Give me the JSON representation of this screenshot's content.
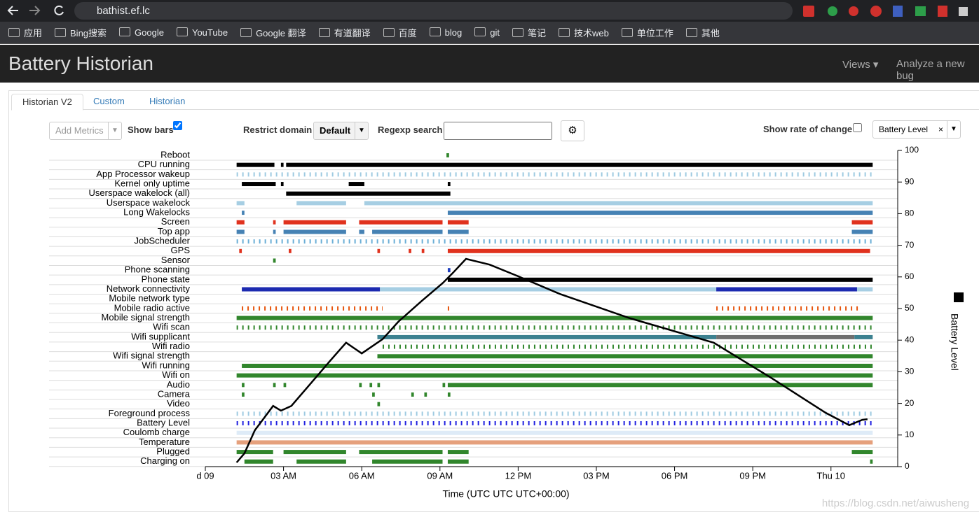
{
  "browser": {
    "url": "bathist.ef.lc",
    "bookmarks": [
      "应用",
      "Bing搜索",
      "Google",
      "YouTube",
      "Google 翻译",
      "有道翻译",
      "百度",
      "blog",
      "git",
      "笔记",
      "技术web",
      "单位工作",
      "其他"
    ]
  },
  "header": {
    "title": "Battery Historian",
    "menu": [
      "Views",
      "Analyze a new bug"
    ]
  },
  "tabs": [
    "Historian V2",
    "Custom",
    "Historian"
  ],
  "active_tab": 0,
  "controls": {
    "add_metrics": "Add Metrics",
    "show_bars": "Show bars",
    "show_bars_checked": true,
    "restrict_domain": "Restrict domain",
    "domain": "Default",
    "regexp_search": "Regexp search",
    "show_rate_of_change": "Show rate of change",
    "rate_checked": false,
    "metric": "Battery Level"
  },
  "chart_data": {
    "type": "timeline",
    "rows": [
      {
        "name": "Reboot",
        "color": "#31862c",
        "segments": [
          [
            9.25,
            9.35
          ]
        ]
      },
      {
        "name": "CPU running",
        "color": "#000000",
        "segments": [
          [
            1.2,
            2.65
          ],
          [
            2.9,
            3.0
          ],
          [
            3.1,
            25.6
          ]
        ]
      },
      {
        "name": "App Processor wakeup",
        "color": "#9ecae1",
        "style": "ticks",
        "segments": [
          [
            1.2,
            25.6
          ]
        ]
      },
      {
        "name": "Kernel only uptime",
        "color": "#000000",
        "segments": [
          [
            1.4,
            2.7
          ],
          [
            2.9,
            3.0
          ],
          [
            5.5,
            6.1
          ],
          [
            9.3,
            9.4
          ]
        ]
      },
      {
        "name": "Userspace wakelock (all)",
        "color": "#000000",
        "segments": [
          [
            3.1,
            9.4
          ]
        ]
      },
      {
        "name": "Userspace wakelock",
        "color": "#a6cee3",
        "segments": [
          [
            1.2,
            1.5
          ],
          [
            3.5,
            5.4
          ],
          [
            6.1,
            25.6
          ]
        ]
      },
      {
        "name": "Long Wakelocks",
        "color": "#4682b4",
        "segments": [
          [
            1.4,
            1.5
          ],
          [
            9.3,
            25.6
          ]
        ]
      },
      {
        "name": "Screen",
        "color": "#e0321e",
        "segments": [
          [
            1.2,
            1.5
          ],
          [
            2.6,
            2.7
          ],
          [
            3.0,
            5.4
          ],
          [
            5.9,
            9.1
          ],
          [
            9.3,
            10.1
          ],
          [
            24.8,
            25.6
          ]
        ]
      },
      {
        "name": "Top app",
        "color": "#4682b4",
        "segments": [
          [
            1.2,
            1.5
          ],
          [
            2.6,
            2.7
          ],
          [
            3.0,
            5.4
          ],
          [
            5.9,
            6.1
          ],
          [
            6.4,
            9.1
          ],
          [
            9.3,
            10.1
          ],
          [
            24.8,
            25.6
          ]
        ]
      },
      {
        "name": "JobScheduler",
        "color": "#6baed6",
        "style": "ticks",
        "segments": [
          [
            1.2,
            25.6
          ]
        ]
      },
      {
        "name": "GPS",
        "color": "#e0321e",
        "segments": [
          [
            1.3,
            1.4
          ],
          [
            3.2,
            3.3
          ],
          [
            6.6,
            6.7
          ],
          [
            7.8,
            7.9
          ],
          [
            8.3,
            8.4
          ],
          [
            9.3,
            25.5
          ]
        ]
      },
      {
        "name": "Sensor",
        "color": "#31862c",
        "segments": [
          [
            2.6,
            2.7
          ]
        ]
      },
      {
        "name": "Phone scanning",
        "color": "#1f3fbf",
        "segments": [
          [
            9.3,
            9.4
          ]
        ]
      },
      {
        "name": "Phone state",
        "color": "#000000",
        "segments": [
          [
            9.3,
            25.6
          ]
        ]
      },
      {
        "name": "Network connectivity",
        "color": "#1c2ab0",
        "colors": [
          "#1c2ab0",
          "#a6cee3",
          "#1c2ab0",
          "#a6cee3"
        ],
        "segments": [
          [
            1.4,
            6.7
          ],
          [
            6.7,
            19.6
          ],
          [
            19.6,
            25.0
          ],
          [
            25.0,
            25.6
          ]
        ]
      },
      {
        "name": "Mobile network type",
        "color": "#000000",
        "segments": []
      },
      {
        "name": "Mobile radio active",
        "color": "#e6550d",
        "style": "ticks",
        "segments": [
          [
            1.4,
            6.8
          ],
          [
            9.3,
            9.4
          ],
          [
            19.6,
            25.1
          ]
        ]
      },
      {
        "name": "Mobile signal strength",
        "color": "#31862c",
        "segments": [
          [
            1.2,
            25.6
          ]
        ]
      },
      {
        "name": "Wifi scan",
        "color": "#31862c",
        "style": "ticks",
        "segments": [
          [
            1.2,
            25.6
          ]
        ]
      },
      {
        "name": "Wifi supplicant",
        "color": "#3c8190",
        "colors": [
          "#3c8190",
          "#6f6f6f",
          "#3c8190"
        ],
        "segments": [
          [
            6.6,
            19.6
          ],
          [
            19.6,
            24.9
          ],
          [
            24.9,
            25.6
          ]
        ]
      },
      {
        "name": "Wifi radio",
        "color": "#31862c",
        "style": "ticks",
        "segments": [
          [
            6.8,
            25.6
          ]
        ]
      },
      {
        "name": "Wifi signal strength",
        "color": "#31862c",
        "segments": [
          [
            6.6,
            25.6
          ]
        ]
      },
      {
        "name": "Wifi running",
        "color": "#31862c",
        "segments": [
          [
            1.4,
            25.6
          ]
        ]
      },
      {
        "name": "Wifi on",
        "color": "#31862c",
        "segments": [
          [
            1.2,
            25.6
          ]
        ]
      },
      {
        "name": "Audio",
        "color": "#31862c",
        "segments": [
          [
            1.4,
            1.5
          ],
          [
            2.6,
            2.7
          ],
          [
            3.0,
            3.1
          ],
          [
            5.9,
            6.0
          ],
          [
            6.3,
            6.4
          ],
          [
            6.6,
            6.7
          ],
          [
            9.1,
            9.2
          ],
          [
            9.3,
            25.6
          ]
        ]
      },
      {
        "name": "Camera",
        "color": "#31862c",
        "segments": [
          [
            1.4,
            1.5
          ],
          [
            6.4,
            6.5
          ],
          [
            7.9,
            8.0
          ],
          [
            8.4,
            8.5
          ],
          [
            9.3,
            9.4
          ]
        ]
      },
      {
        "name": "Video",
        "color": "#31862c",
        "segments": [
          [
            6.6,
            6.7
          ]
        ]
      },
      {
        "name": "Foreground process",
        "color": "#9ecae1",
        "style": "ticks",
        "segments": [
          [
            1.2,
            25.6
          ]
        ]
      },
      {
        "name": "Battery Level",
        "color": "#2020e0",
        "style": "ticks",
        "segments": [
          [
            1.2,
            25.6
          ]
        ]
      },
      {
        "name": "Coulomb charge",
        "color": "#deebf7",
        "segments": [
          [
            1.2,
            25.6
          ]
        ]
      },
      {
        "name": "Temperature",
        "color": "#e5a07c",
        "segments": [
          [
            1.2,
            25.6
          ]
        ]
      },
      {
        "name": "Plugged",
        "color": "#31862c",
        "segments": [
          [
            1.2,
            2.6
          ],
          [
            3.0,
            5.4
          ],
          [
            5.9,
            9.1
          ],
          [
            9.3,
            10.1
          ],
          [
            24.8,
            25.6
          ]
        ]
      },
      {
        "name": "Charging on",
        "color": "#31862c",
        "segments": [
          [
            1.5,
            2.6
          ],
          [
            3.5,
            5.4
          ],
          [
            6.4,
            9.1
          ],
          [
            9.3,
            10.1
          ],
          [
            25.5,
            25.6
          ]
        ]
      }
    ],
    "xlim": [
      0,
      26.56
    ],
    "xticks": [
      {
        "value": 0,
        "label": "d 09"
      },
      {
        "value": 3,
        "label": "03 AM"
      },
      {
        "value": 6,
        "label": "06 AM"
      },
      {
        "value": 9,
        "label": "09 AM"
      },
      {
        "value": 12,
        "label": "12 PM"
      },
      {
        "value": 15,
        "label": "03 PM"
      },
      {
        "value": 18,
        "label": "06 PM"
      },
      {
        "value": 21,
        "label": "09 PM"
      },
      {
        "value": 24,
        "label": "Thu 10"
      }
    ],
    "xlabel": "Time (UTC UTC UTC+00:00)",
    "y2lim": [
      0,
      100
    ],
    "y2ticks": [
      0,
      10,
      20,
      30,
      40,
      50,
      60,
      70,
      80,
      90,
      100
    ],
    "series": [
      {
        "name": "Battery Level",
        "color": "#000000",
        "axis": "y2",
        "x": [
          1.2,
          1.5,
          1.9,
          2.6,
          2.9,
          3.3,
          4.0,
          4.8,
          5.4,
          6.0,
          6.8,
          7.4,
          8.3,
          9.1,
          9.5,
          10.0,
          10.9,
          12.0,
          13.6,
          16.3,
          19.5,
          21.7,
          23.8,
          24.7,
          25.2,
          25.4
        ],
        "values": [
          1.3,
          4.2,
          11.5,
          19.2,
          17.7,
          19.2,
          25.9,
          33.6,
          39.2,
          35.8,
          40.3,
          45.8,
          52.4,
          58,
          61.3,
          65.7,
          63.9,
          60.2,
          54.6,
          46.9,
          39.2,
          28.1,
          17,
          13.1,
          14.8,
          15
        ]
      }
    ]
  },
  "watermark": "https://blog.csdn.net/aiwusheng"
}
